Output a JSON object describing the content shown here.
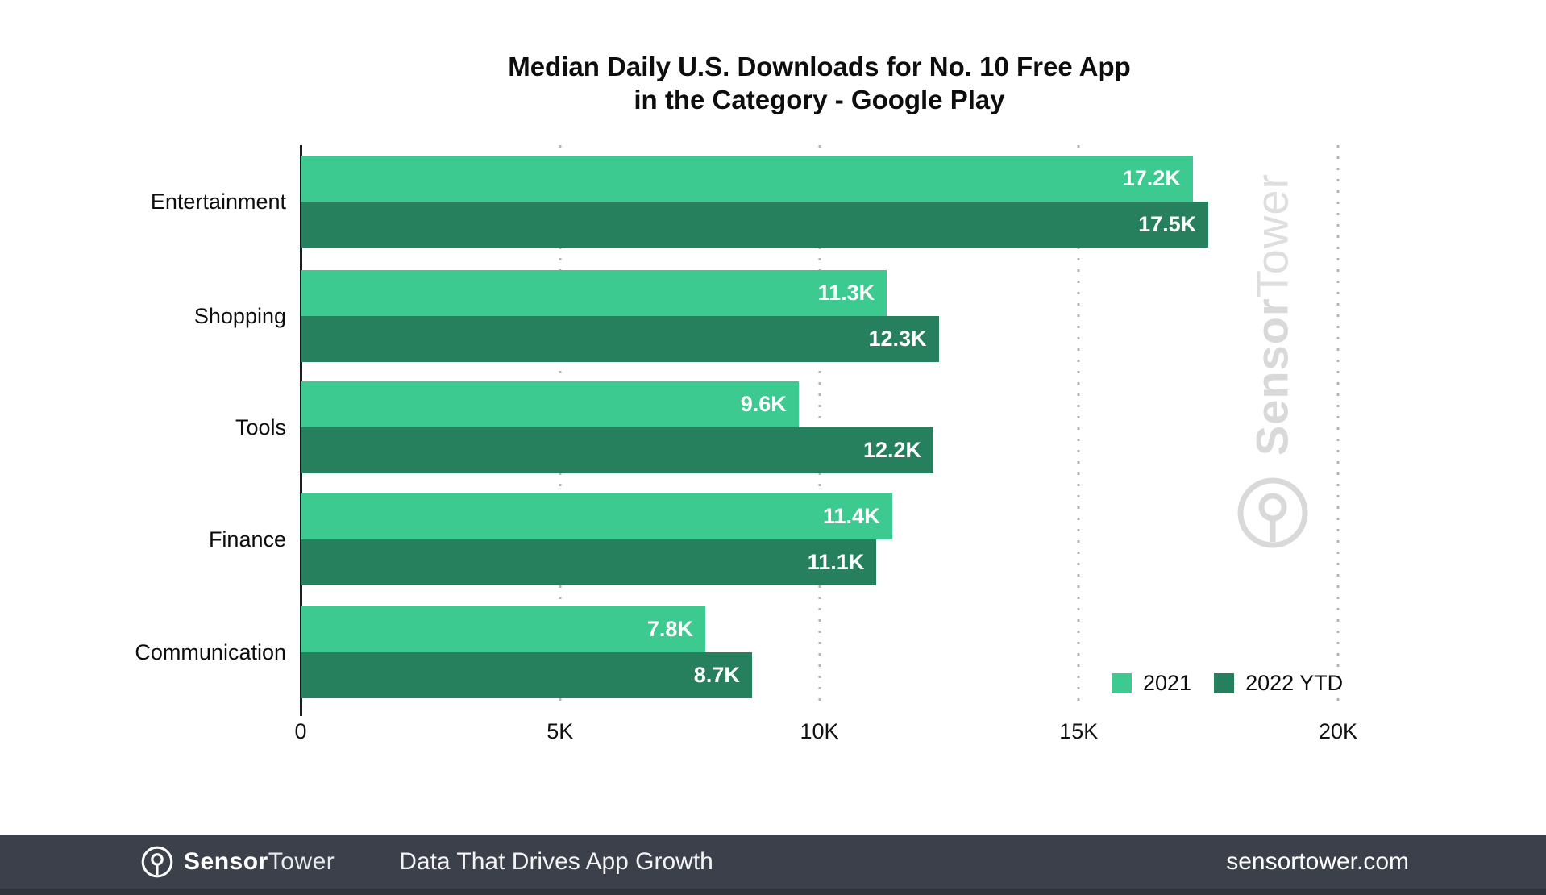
{
  "title": {
    "line1": "Median Daily U.S. Downloads for No. 10 Free App",
    "line2": "in the Category - Google Play"
  },
  "chart_data": {
    "type": "bar",
    "orientation": "horizontal",
    "title": "Median Daily U.S. Downloads for No. 10 Free App in the Category - Google Play",
    "categories": [
      "Entertainment",
      "Shopping",
      "Tools",
      "Finance",
      "Communication"
    ],
    "series": [
      {
        "name": "2021",
        "color": "#3cca90",
        "values": [
          17200,
          11300,
          9600,
          11400,
          7800
        ],
        "value_labels": [
          "17.2K",
          "11.3K",
          "9.6K",
          "11.4K",
          "7.8K"
        ]
      },
      {
        "name": "2022 YTD",
        "color": "#27805d",
        "values": [
          17500,
          12300,
          12200,
          11100,
          8700
        ],
        "value_labels": [
          "17.5K",
          "12.3K",
          "12.2K",
          "11.1K",
          "8.7K"
        ]
      }
    ],
    "xlim": [
      0,
      20000
    ],
    "x_ticks": [
      {
        "value": 0,
        "label": "0"
      },
      {
        "value": 5000,
        "label": "5K"
      },
      {
        "value": 10000,
        "label": "10K"
      },
      {
        "value": 15000,
        "label": "15K"
      },
      {
        "value": 20000,
        "label": "20K"
      }
    ],
    "grid": "vertical-dotted",
    "legend_position": "bottom-right"
  },
  "watermark": {
    "brand_bold": "Sensor",
    "brand_light": "Tower"
  },
  "footer": {
    "brand_bold": "Sensor",
    "brand_light": "Tower",
    "tagline": "Data That Drives App Growth",
    "website": "sensortower.com",
    "background": "#3b404b"
  },
  "colors": {
    "series_2021": "#3cca90",
    "series_2022": "#27805d",
    "watermark": "#d9d9d9",
    "gridline": "#b5b5b5",
    "axis": "#1a1a1a"
  }
}
